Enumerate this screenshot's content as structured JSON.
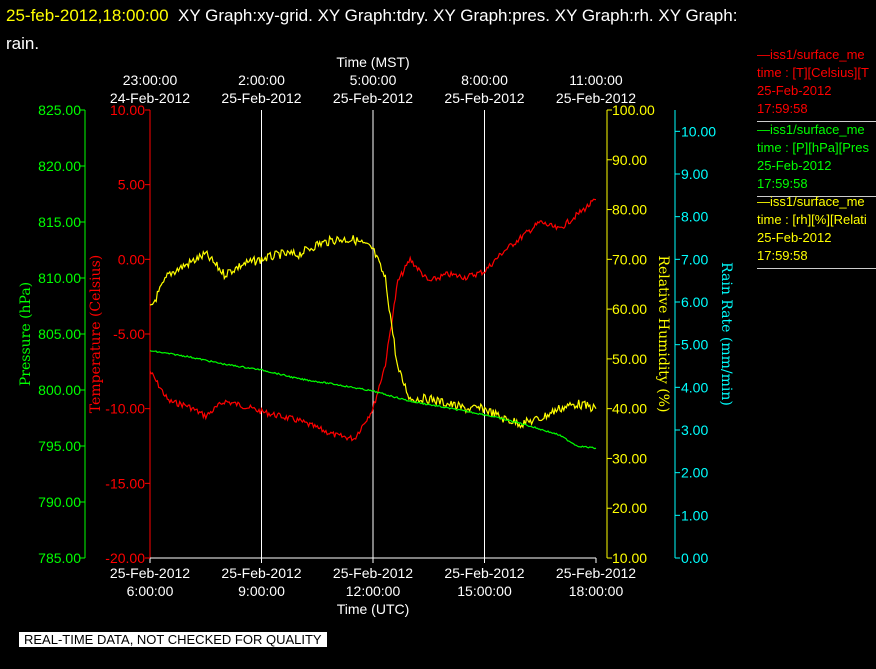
{
  "title": {
    "timestamp": "25-feb-2012,18:00:00",
    "text": "XY Graph:xy-grid.  XY Graph:tdry.  XY Graph:pres.  XY Graph:rh.  XY Graph:",
    "wrap": "rain."
  },
  "colors": {
    "temperature": "#ff0000",
    "pressure": "#00ff00",
    "humidity": "#ffff00",
    "rain": "#00ffff",
    "grid": "#ffffff",
    "background": "#000000"
  },
  "legend": [
    {
      "name": "legend-temperature",
      "color": "#ff0000",
      "line1": "—iss1/surface_me",
      "line2": "time : [T][Celsius][T",
      "line3": "25-Feb-2012",
      "line4": "17:59:58"
    },
    {
      "name": "legend-pressure",
      "color": "#00ff00",
      "line1": "—iss1/surface_me",
      "line2": "time : [P][hPa][Pres",
      "line3": "25-Feb-2012",
      "line4": "17:59:58"
    },
    {
      "name": "legend-humidity",
      "color": "#ffff00",
      "line1": "—iss1/surface_me",
      "line2": "time : [rh][%][Relati",
      "line3": "25-Feb-2012",
      "line4": "17:59:58"
    }
  ],
  "notice": "REAL-TIME DATA, NOT CHECKED FOR QUALITY",
  "chart_data": {
    "type": "line",
    "x_range_utc": [
      "2012-02-25 06:00",
      "2012-02-25 18:00"
    ],
    "xlabel_bottom": "Time (UTC)",
    "xlabel_top": "Time (MST)",
    "x_ticks_bottom": [
      {
        "date": "25-Feb-2012",
        "time": "6:00:00"
      },
      {
        "date": "25-Feb-2012",
        "time": "9:00:00"
      },
      {
        "date": "25-Feb-2012",
        "time": "12:00:00"
      },
      {
        "date": "25-Feb-2012",
        "time": "15:00:00"
      },
      {
        "date": "25-Feb-2012",
        "time": "18:00:00"
      }
    ],
    "x_ticks_top": [
      {
        "time": "23:00:00",
        "date": "24-Feb-2012"
      },
      {
        "time": "2:00:00",
        "date": "25-Feb-2012"
      },
      {
        "time": "5:00:00",
        "date": "25-Feb-2012"
      },
      {
        "time": "8:00:00",
        "date": "25-Feb-2012"
      },
      {
        "time": "11:00:00",
        "date": "25-Feb-2012"
      }
    ],
    "axes": {
      "pressure": {
        "label": "Pressure (hPa)",
        "range": [
          785,
          825
        ],
        "ticks": [
          "785.00",
          "790.00",
          "795.00",
          "800.00",
          "805.00",
          "810.00",
          "815.00",
          "820.00",
          "825.00"
        ]
      },
      "temperature": {
        "label": "Temperature (Celsius)",
        "range": [
          -20,
          10
        ],
        "ticks": [
          "-20.00",
          "-15.00",
          "-10.00",
          "-5.00",
          "0.00",
          "5.00",
          "10.00"
        ]
      },
      "humidity": {
        "label": "Relative Humidity (%)",
        "range": [
          10,
          100
        ],
        "ticks": [
          "10.00",
          "20.00",
          "30.00",
          "40.00",
          "50.00",
          "60.00",
          "70.00",
          "80.00",
          "90.00",
          "100.00"
        ]
      },
      "rain": {
        "label": "Rain Rate (mm/min)",
        "range": [
          0,
          10.5
        ],
        "ticks": [
          "0.00",
          "1.00",
          "2.00",
          "3.00",
          "4.00",
          "5.00",
          "6.00",
          "7.00",
          "8.00",
          "9.00",
          "10.00"
        ]
      }
    },
    "grid": true,
    "series": [
      {
        "axis": "temperature",
        "x_utc": [
          "2012-02-25 06:00",
          "2012-02-25 06:30",
          "2012-02-25 07:00",
          "2012-02-25 07:30",
          "2012-02-25 08:00",
          "2012-02-25 08:30",
          "2012-02-25 09:00",
          "2012-02-25 09:30",
          "2012-02-25 10:00",
          "2012-02-25 10:30",
          "2012-02-25 11:00",
          "2012-02-25 11:30",
          "2012-02-25 12:00",
          "2012-02-25 12:20",
          "2012-02-25 12:40",
          "2012-02-25 13:00",
          "2012-02-25 13:30",
          "2012-02-25 14:00",
          "2012-02-25 14:30",
          "2012-02-25 15:00",
          "2012-02-25 15:30",
          "2012-02-25 16:00",
          "2012-02-25 16:30",
          "2012-02-25 17:00",
          "2012-02-25 17:30",
          "2012-02-25 18:00"
        ],
        "values": [
          -7.5,
          -9.5,
          -9.8,
          -10.5,
          -9.5,
          -9.8,
          -10.2,
          -10.5,
          -10.8,
          -11.3,
          -11.8,
          -12.0,
          -10.0,
          -7.0,
          -1.5,
          0.0,
          -1.5,
          -1.0,
          -1.2,
          -0.8,
          0.5,
          1.5,
          2.5,
          2.0,
          3.0,
          4.0
        ]
      },
      {
        "axis": "humidity",
        "x_utc": [
          "2012-02-25 06:00",
          "2012-02-25 06:30",
          "2012-02-25 07:00",
          "2012-02-25 07:30",
          "2012-02-25 08:00",
          "2012-02-25 08:30",
          "2012-02-25 09:00",
          "2012-02-25 09:30",
          "2012-02-25 10:00",
          "2012-02-25 10:30",
          "2012-02-25 11:00",
          "2012-02-25 11:30",
          "2012-02-25 12:00",
          "2012-02-25 12:20",
          "2012-02-25 12:40",
          "2012-02-25 13:00",
          "2012-02-25 13:30",
          "2012-02-25 14:00",
          "2012-02-25 14:30",
          "2012-02-25 15:00",
          "2012-02-25 15:30",
          "2012-02-25 16:00",
          "2012-02-25 16:30",
          "2012-02-25 17:00",
          "2012-02-25 17:30",
          "2012-02-25 18:00"
        ],
        "values": [
          60,
          67,
          69,
          71,
          67,
          69,
          70,
          71,
          71,
          73,
          74,
          74,
          72,
          66,
          48,
          42,
          42,
          41,
          40,
          40,
          38,
          37,
          38,
          40,
          41,
          40
        ]
      },
      {
        "axis": "pressure",
        "x_utc": [
          "2012-02-25 06:00",
          "2012-02-25 07:00",
          "2012-02-25 08:00",
          "2012-02-25 09:00",
          "2012-02-25 10:00",
          "2012-02-25 11:00",
          "2012-02-25 12:00",
          "2012-02-25 13:00",
          "2012-02-25 14:00",
          "2012-02-25 15:00",
          "2012-02-25 16:00",
          "2012-02-25 17:00",
          "2012-02-25 17:30",
          "2012-02-25 18:00"
        ],
        "values": [
          803.5,
          803.0,
          802.3,
          801.8,
          801.0,
          800.5,
          799.9,
          799.0,
          798.4,
          797.8,
          797.0,
          796.0,
          795.0,
          794.8
        ]
      }
    ]
  }
}
